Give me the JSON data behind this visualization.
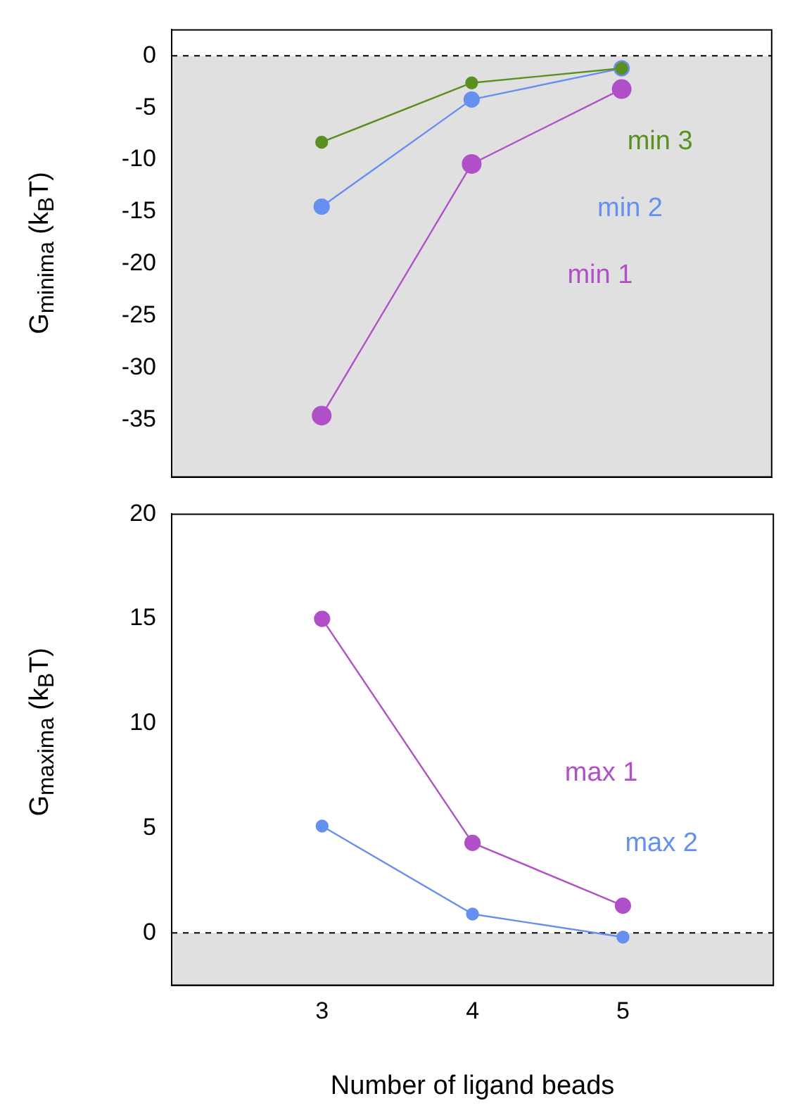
{
  "chart_data": [
    {
      "type": "line",
      "ylabel": "G$_{minima}$ (k$_{B}$T)",
      "x": [
        3,
        4,
        5
      ],
      "xlim": [
        2,
        6
      ],
      "xticks": [
        3,
        4,
        5
      ],
      "ylim": [
        -40.5,
        2.5
      ],
      "yticks": [
        -35,
        -30,
        -25,
        -20,
        -15,
        -10,
        -5,
        0
      ],
      "tick_labels": "y",
      "marker": "circle",
      "grid": false,
      "series": [
        {
          "name": "min 1",
          "color": "#b050c8",
          "values": [
            -34.6,
            -10.4,
            -3.2
          ]
        },
        {
          "name": "min 2",
          "color": "#6690f0",
          "values": [
            -14.5,
            -4.2,
            -1.2
          ]
        },
        {
          "name": "min 3",
          "color": "#5a9020",
          "values": [
            -8.3,
            -2.6,
            -1.2
          ]
        }
      ],
      "bands": [
        {
          "axis": "y",
          "from": -40.5,
          "to": 0,
          "color": "#e0e0e0"
        }
      ],
      "ref_lines": [
        {
          "axis": "y",
          "value": 0,
          "color": "#000000",
          "line_style": "dashed"
        }
      ]
    },
    {
      "type": "line",
      "ylabel": "G$_{maxima}$ (k$_{B}$T)",
      "xlabel": "Number of ligand beads",
      "x": [
        3,
        4,
        5
      ],
      "xlim": [
        2,
        6
      ],
      "xticks": [
        3,
        4,
        5
      ],
      "ylim": [
        -2.5,
        20
      ],
      "yticks": [
        0,
        5,
        10,
        15,
        20
      ],
      "marker": "circle",
      "grid": false,
      "series": [
        {
          "name": "max 1",
          "color": "#b050c8",
          "values": [
            15.0,
            4.3,
            1.3
          ]
        },
        {
          "name": "max 2",
          "color": "#6690f0",
          "values": [
            5.1,
            0.9,
            -0.2
          ]
        }
      ],
      "bands": [
        {
          "axis": "y",
          "from": -2.5,
          "to": 0,
          "color": "#e0e0e0"
        }
      ],
      "ref_lines": [
        {
          "axis": "y",
          "value": 0,
          "color": "#000000",
          "line_style": "dashed"
        }
      ]
    }
  ]
}
